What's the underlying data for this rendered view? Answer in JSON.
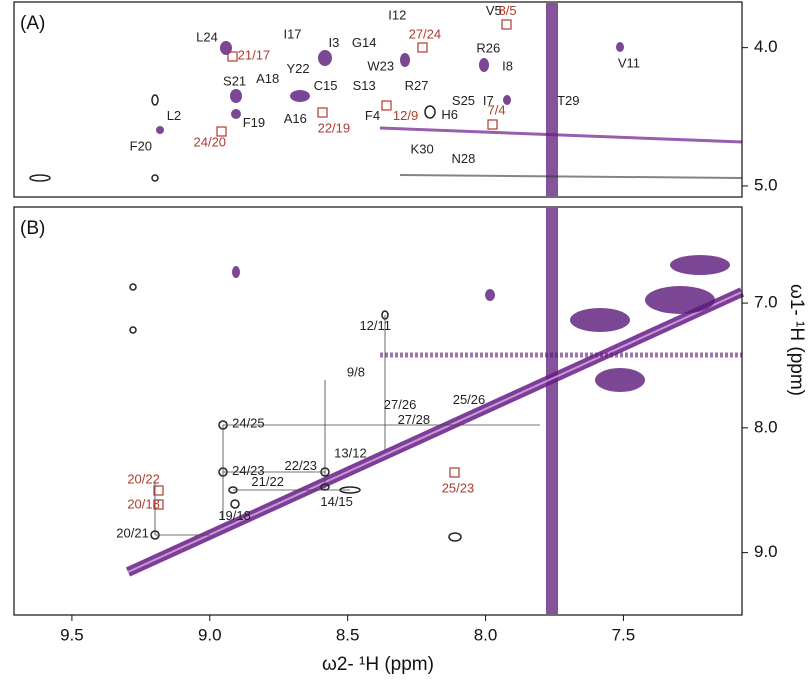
{
  "chart_data": [
    {
      "type": "contour",
      "panel_label": "(A)",
      "xlim": [
        9.71,
        7.07
      ],
      "ylim": [
        3.67,
        5.08
      ],
      "yticks": [
        {
          "value": 4,
          "label": "4.0"
        },
        {
          "value": 5,
          "label": "5.0"
        }
      ],
      "annotations": [
        {
          "text": "L24",
          "x": 9.01,
          "y": 3.93,
          "color": "#222222"
        },
        {
          "text": "21/17",
          "x": 8.84,
          "y": 4.06,
          "color": "#b03a2e"
        },
        {
          "text": "I17",
          "x": 8.7,
          "y": 3.91,
          "color": "#222222"
        },
        {
          "text": "I3",
          "x": 8.55,
          "y": 3.97,
          "color": "#222222"
        },
        {
          "text": "G14",
          "x": 8.44,
          "y": 3.97,
          "color": "#222222"
        },
        {
          "text": "I12",
          "x": 8.32,
          "y": 3.77,
          "color": "#222222"
        },
        {
          "text": "27/24",
          "x": 8.22,
          "y": 3.91,
          "color": "#b03a2e"
        },
        {
          "text": "V5",
          "x": 7.97,
          "y": 3.74,
          "color": "#222222"
        },
        {
          "text": "8/5",
          "x": 7.92,
          "y": 3.74,
          "color": "#b03a2e"
        },
        {
          "text": "R26",
          "x": 7.99,
          "y": 4.01,
          "color": "#222222"
        },
        {
          "text": "I8",
          "x": 7.92,
          "y": 4.14,
          "color": "#222222"
        },
        {
          "text": "V11",
          "x": 7.48,
          "y": 4.12,
          "color": "#222222"
        },
        {
          "text": "S21",
          "x": 8.91,
          "y": 4.25,
          "color": "#222222"
        },
        {
          "text": "A18",
          "x": 8.79,
          "y": 4.23,
          "color": "#222222"
        },
        {
          "text": "Y22",
          "x": 8.68,
          "y": 4.16,
          "color": "#222222"
        },
        {
          "text": "W23",
          "x": 8.38,
          "y": 4.14,
          "color": "#222222"
        },
        {
          "text": "C15",
          "x": 8.58,
          "y": 4.28,
          "color": "#222222"
        },
        {
          "text": "S13",
          "x": 8.44,
          "y": 4.28,
          "color": "#222222"
        },
        {
          "text": "R27",
          "x": 8.25,
          "y": 4.28,
          "color": "#222222"
        },
        {
          "text": "S25",
          "x": 8.08,
          "y": 4.39,
          "color": "#222222"
        },
        {
          "text": "I7",
          "x": 7.99,
          "y": 4.39,
          "color": "#222222"
        },
        {
          "text": "7/4",
          "x": 7.96,
          "y": 4.46,
          "color": "#b03a2e"
        },
        {
          "text": "T29",
          "x": 7.7,
          "y": 4.39,
          "color": "#222222"
        },
        {
          "text": "L2",
          "x": 9.13,
          "y": 4.5,
          "color": "#222222"
        },
        {
          "text": "A16",
          "x": 8.69,
          "y": 4.52,
          "color": "#222222"
        },
        {
          "text": "F4",
          "x": 8.41,
          "y": 4.5,
          "color": "#222222"
        },
        {
          "text": "12/9",
          "x": 8.29,
          "y": 4.5,
          "color": "#b03a2e"
        },
        {
          "text": "H6",
          "x": 8.13,
          "y": 4.49,
          "color": "#222222"
        },
        {
          "text": "24/20",
          "x": 9.0,
          "y": 4.69,
          "color": "#b03a2e"
        },
        {
          "text": "F19",
          "x": 8.84,
          "y": 4.55,
          "color": "#222222"
        },
        {
          "text": "22/19",
          "x": 8.55,
          "y": 4.59,
          "color": "#b03a2e"
        },
        {
          "text": "F20",
          "x": 9.25,
          "y": 4.72,
          "color": "#222222"
        },
        {
          "text": "K30",
          "x": 8.23,
          "y": 4.74,
          "color": "#222222"
        },
        {
          "text": "N28",
          "x": 8.08,
          "y": 4.81,
          "color": "#222222"
        }
      ]
    },
    {
      "type": "contour",
      "panel_label": "(B)",
      "xlim": [
        9.71,
        7.07
      ],
      "ylim": [
        6.23,
        9.5
      ],
      "xticks": [
        9.5,
        {
          "value": 9,
          "label": "9.0"
        },
        8.5,
        {
          "value": 8,
          "label": "8.0"
        },
        7.5
      ],
      "yticks": [
        {
          "value": 7,
          "label": "7.0"
        },
        {
          "value": 8,
          "label": "8.0"
        },
        {
          "value": 9,
          "label": "9.0"
        }
      ],
      "xlabel": "ω2- ¹H (ppm)",
      "ylabel": "ω1- ¹H (ppm)",
      "annotations": [
        {
          "text": "12/11",
          "x": 8.4,
          "y": 7.19,
          "color": "#222222"
        },
        {
          "text": "9/8",
          "x": 8.47,
          "y": 7.56,
          "color": "#222222"
        },
        {
          "text": "27/26",
          "x": 8.31,
          "y": 7.82,
          "color": "#222222"
        },
        {
          "text": "25/26",
          "x": 8.06,
          "y": 7.78,
          "color": "#222222"
        },
        {
          "text": "27/28",
          "x": 8.26,
          "y": 7.94,
          "color": "#222222"
        },
        {
          "text": "24/25",
          "x": 8.86,
          "y": 7.97,
          "color": "#222222"
        },
        {
          "text": "13/12",
          "x": 8.49,
          "y": 8.21,
          "color": "#222222"
        },
        {
          "text": "22/23",
          "x": 8.67,
          "y": 8.31,
          "color": "#222222"
        },
        {
          "text": "24/23",
          "x": 8.86,
          "y": 8.35,
          "color": "#222222"
        },
        {
          "text": "21/22",
          "x": 8.79,
          "y": 8.44,
          "color": "#222222"
        },
        {
          "text": "20/22",
          "x": 9.24,
          "y": 8.42,
          "color": "#b03a2e"
        },
        {
          "text": "20/18",
          "x": 9.24,
          "y": 8.62,
          "color": "#b03a2e"
        },
        {
          "text": "25/23",
          "x": 8.1,
          "y": 8.49,
          "color": "#b03a2e"
        },
        {
          "text": "14/15",
          "x": 8.54,
          "y": 8.6,
          "color": "#222222"
        },
        {
          "text": "19/18",
          "x": 8.91,
          "y": 8.71,
          "color": "#222222"
        },
        {
          "text": "20/21",
          "x": 9.28,
          "y": 8.85,
          "color": "#222222"
        }
      ]
    }
  ]
}
